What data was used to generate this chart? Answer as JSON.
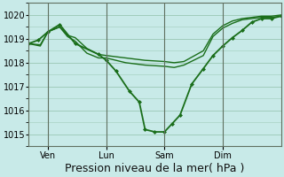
{
  "background_color": "#c8eae8",
  "plot_bg_color": "#c8eae8",
  "grid_color": "#a0ccbb",
  "line_color": "#1a6e1a",
  "marker_color": "#1a6e1a",
  "ylim": [
    1014.5,
    1020.5
  ],
  "yticks": [
    1015,
    1016,
    1017,
    1018,
    1019,
    1020
  ],
  "xlabel": "Pression niveau de la mer( hPa )",
  "xlabel_fontsize": 9,
  "tick_fontsize": 7,
  "xtick_labels": [
    "Ven",
    "Lun",
    "Sam",
    "Dim"
  ],
  "xtick_positions": [
    1,
    4,
    7,
    10
  ],
  "xlim": [
    0,
    13
  ],
  "series": [
    {
      "x": [
        0,
        0.6,
        1.0,
        1.6,
        2.0,
        2.4,
        3.0,
        3.6,
        4.0,
        4.5,
        5.0,
        5.5,
        6.0,
        7.0,
        7.5,
        8.0,
        9.0,
        9.5,
        10.0,
        10.5,
        11.0,
        11.5,
        12.0,
        12.5,
        13.0
      ],
      "y": [
        1018.8,
        1018.75,
        1019.3,
        1019.5,
        1019.15,
        1019.05,
        1018.6,
        1018.35,
        1018.3,
        1018.25,
        1018.2,
        1018.15,
        1018.1,
        1018.05,
        1018.0,
        1018.05,
        1018.5,
        1019.2,
        1019.55,
        1019.75,
        1019.85,
        1019.9,
        1019.95,
        1019.95,
        1020.0
      ],
      "lw": 1.0,
      "has_markers": false
    },
    {
      "x": [
        0,
        0.6,
        1.0,
        1.6,
        2.0,
        2.4,
        3.0,
        3.6,
        4.0,
        4.5,
        5.0,
        5.5,
        6.0,
        7.0,
        7.5,
        8.0,
        9.0,
        9.5,
        10.0,
        10.5,
        11.0,
        11.5,
        12.0,
        12.5,
        13.0
      ],
      "y": [
        1018.8,
        1018.7,
        1019.3,
        1019.5,
        1019.1,
        1018.9,
        1018.4,
        1018.2,
        1018.2,
        1018.1,
        1018.0,
        1017.95,
        1017.9,
        1017.85,
        1017.8,
        1017.9,
        1018.3,
        1019.1,
        1019.45,
        1019.65,
        1019.8,
        1019.85,
        1019.9,
        1019.9,
        1019.95
      ],
      "lw": 1.0,
      "has_markers": false
    },
    {
      "x": [
        0,
        0.5,
        1.0,
        1.6,
        2.4,
        3.6,
        4.0,
        4.5,
        5.2,
        5.7,
        6.0,
        6.5,
        7.0,
        7.4,
        7.8,
        8.4,
        9.0,
        9.5,
        10.0,
        10.5,
        11.0,
        11.5,
        12.0,
        12.5,
        13.0
      ],
      "y": [
        1018.8,
        1018.95,
        1019.3,
        1019.6,
        1018.8,
        1018.35,
        1018.1,
        1017.65,
        1016.8,
        1016.35,
        1015.2,
        1015.1,
        1015.1,
        1015.45,
        1015.8,
        1017.1,
        1017.75,
        1018.3,
        1018.7,
        1019.05,
        1019.35,
        1019.7,
        1019.85,
        1019.85,
        1019.95
      ],
      "lw": 1.3,
      "has_markers": true
    }
  ],
  "vlines": [
    1,
    4,
    7,
    10
  ],
  "vline_color": "#607060"
}
